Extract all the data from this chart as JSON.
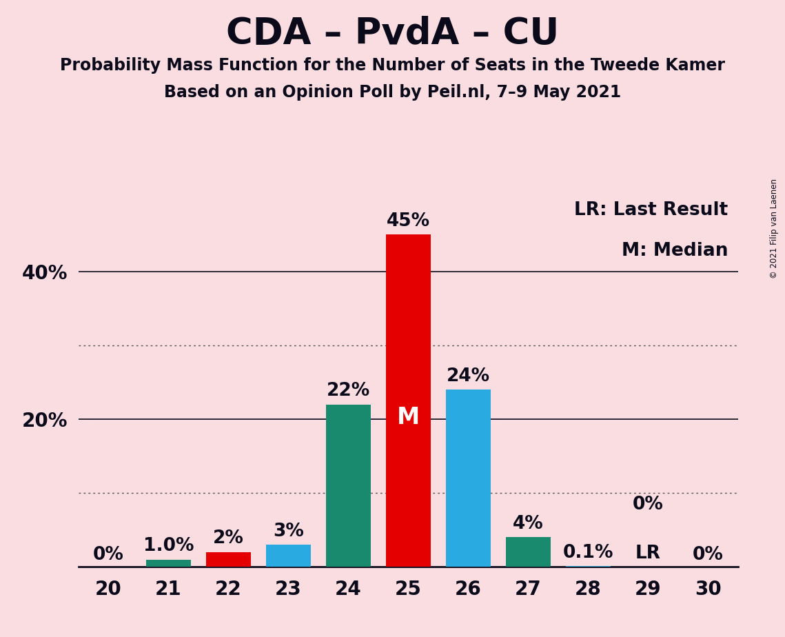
{
  "title": "CDA – PvdA – CU",
  "subtitle1": "Probability Mass Function for the Number of Seats in the Tweede Kamer",
  "subtitle2": "Based on an Opinion Poll by Peil.nl, 7–9 May 2021",
  "copyright": "© 2021 Filip van Laenen",
  "seats": [
    20,
    21,
    22,
    23,
    24,
    25,
    26,
    27,
    28,
    29,
    30
  ],
  "values": [
    0.0,
    1.0,
    2.0,
    3.0,
    22.0,
    45.0,
    24.0,
    4.0,
    0.1,
    0.0,
    0.0
  ],
  "labels": [
    "0%",
    "1.0%",
    "2%",
    "3%",
    "22%",
    "45%",
    "24%",
    "4%",
    "0.1%",
    "0%",
    "0%"
  ],
  "colors": [
    "#1a8a6e",
    "#1a8a6e",
    "#e50000",
    "#29aae1",
    "#1a8a6e",
    "#e50000",
    "#29aae1",
    "#1a8a6e",
    "#29aae1",
    "#1a8a6e",
    "#1a8a6e"
  ],
  "median_seat": 25,
  "lr_seat": 29,
  "legend_lr": "LR: Last Result",
  "legend_m": "M: Median",
  "background_color": "#f9dde0",
  "bar_width": 0.75,
  "ylim_max": 50,
  "dotted_lines": [
    10,
    30
  ],
  "solid_lines": [
    20,
    40
  ],
  "title_fontsize": 38,
  "subtitle_fontsize": 17,
  "label_fontsize": 19,
  "tick_fontsize": 20,
  "legend_fontsize": 19,
  "lr_label": "LR",
  "text_color": "#0a0a1a"
}
